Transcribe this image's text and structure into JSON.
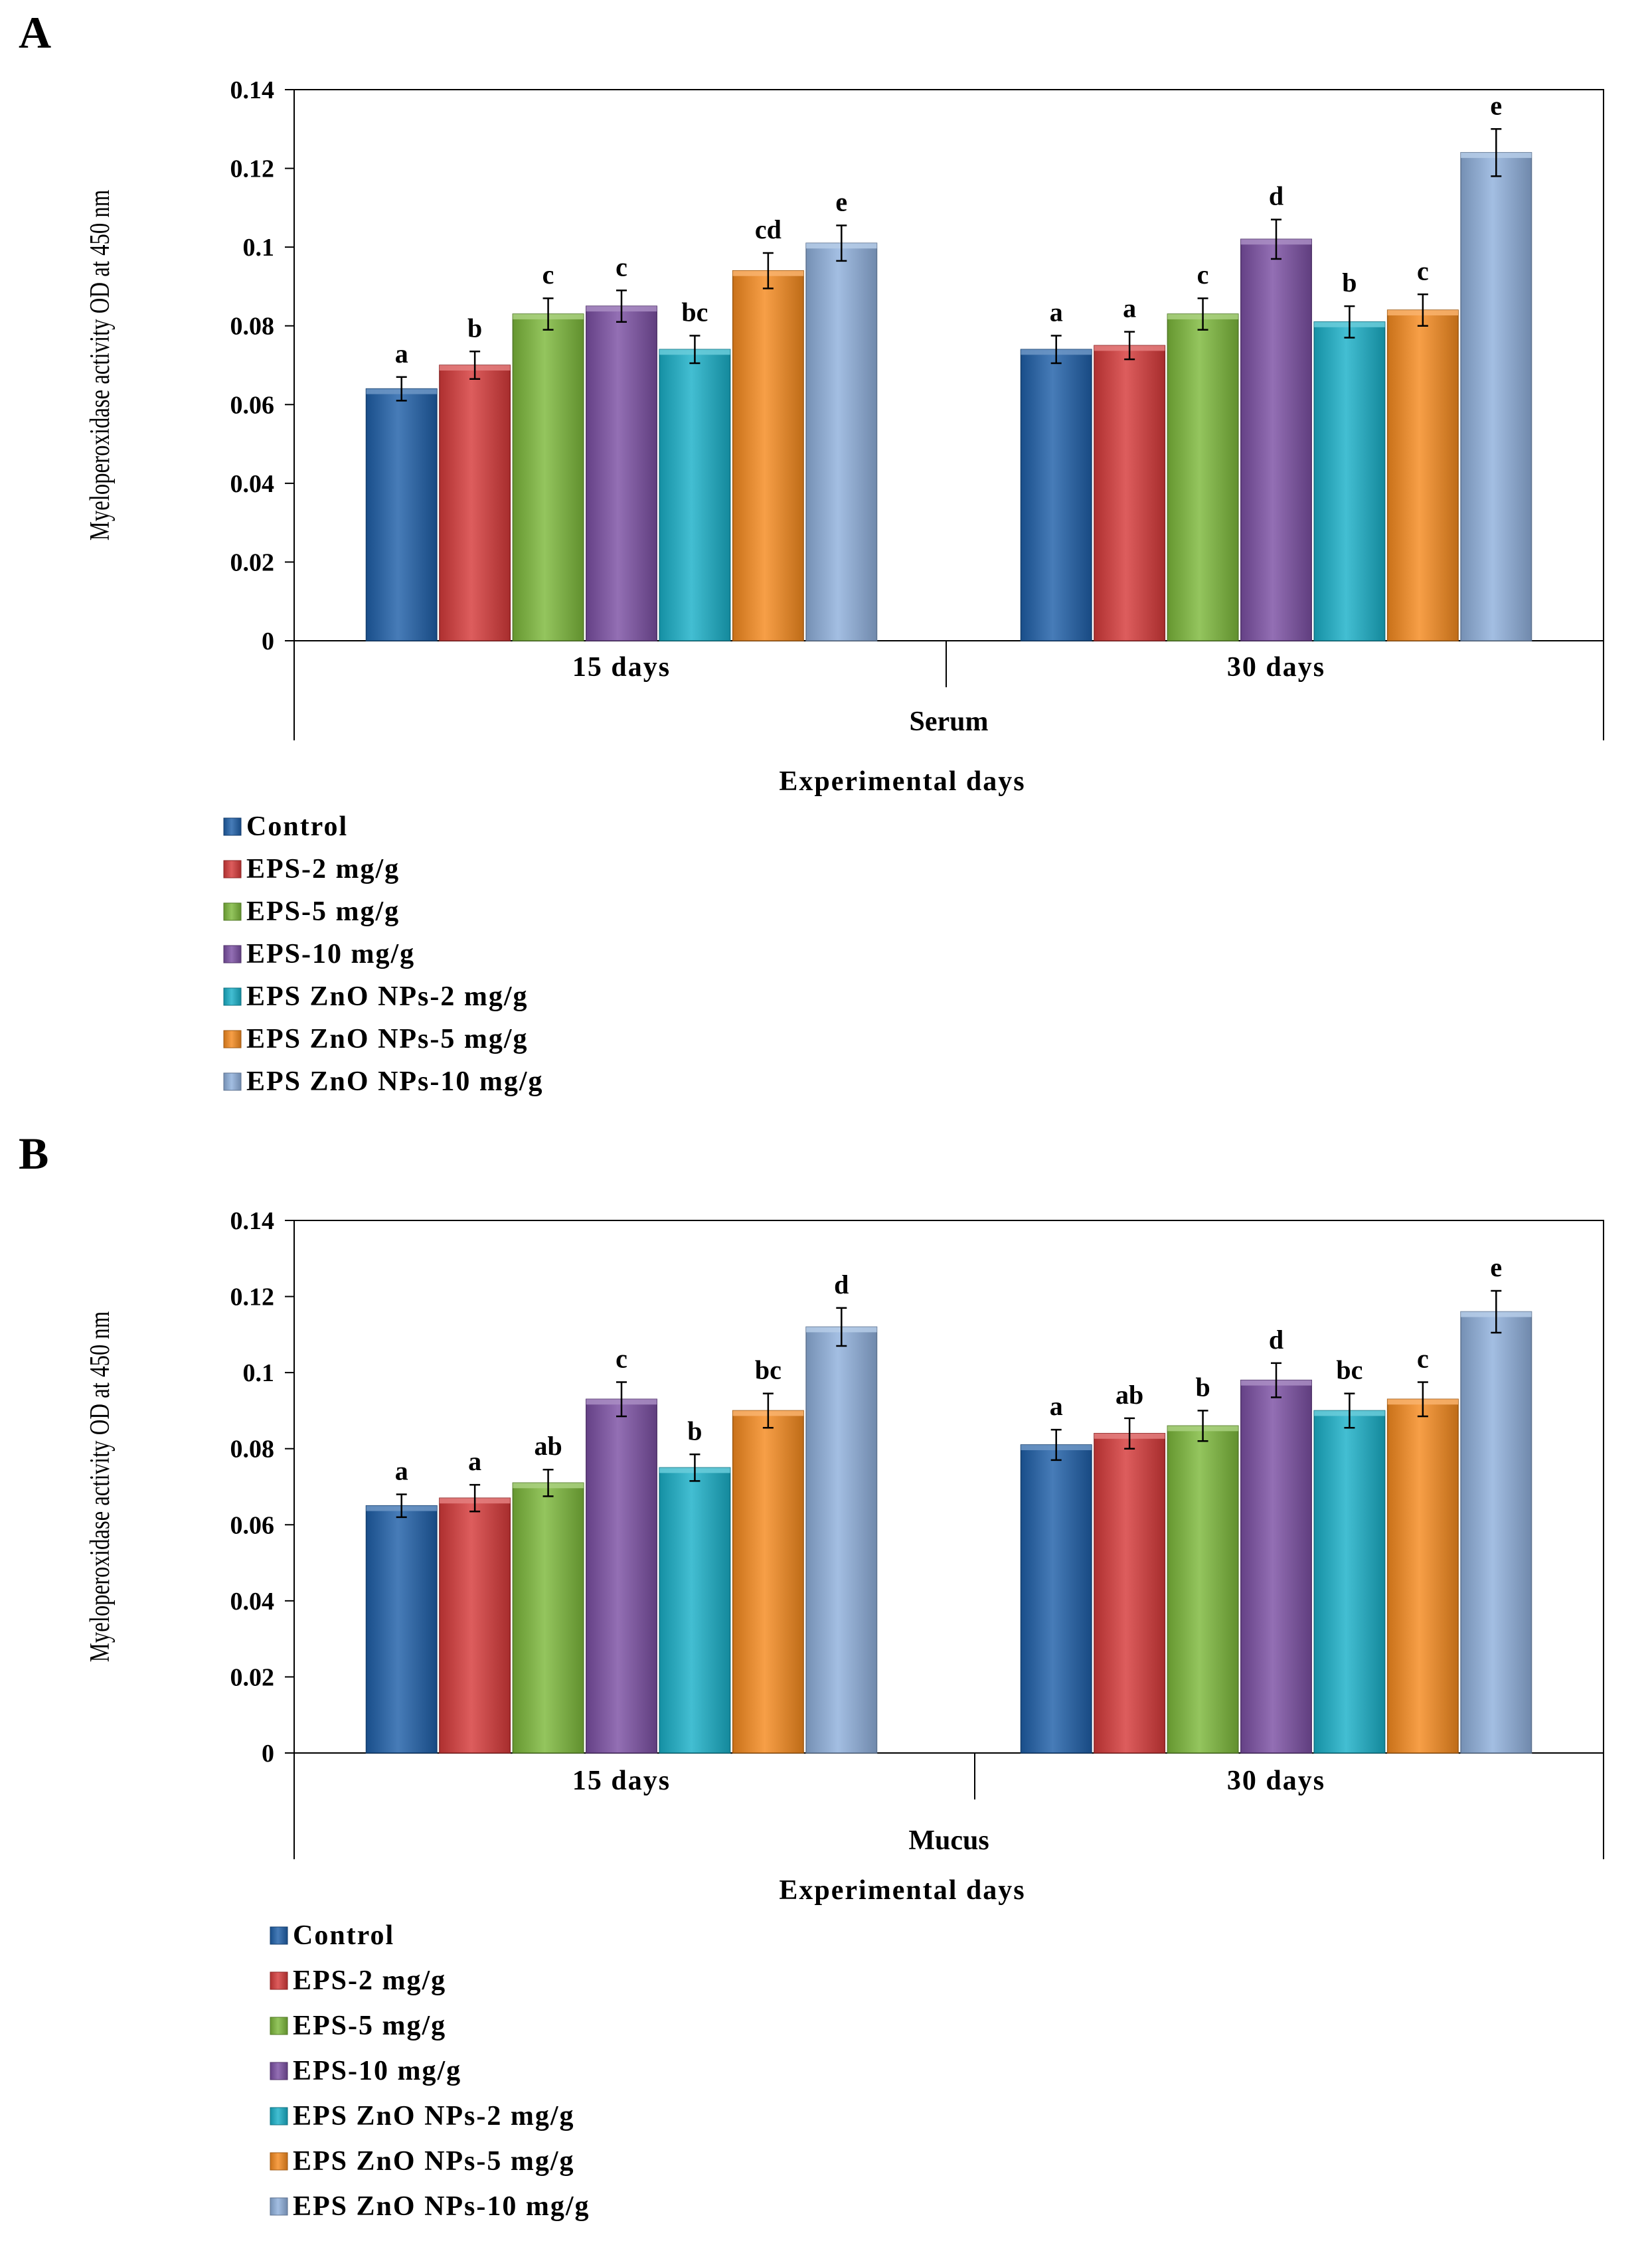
{
  "chart_data": [
    {
      "panel": "A",
      "type": "bar",
      "ylabel": "Myeloperoxidase activity OD at 450 nm",
      "xlabel": "Experimental  days",
      "group_label": "Serum",
      "categories": [
        "15 days",
        "30 days"
      ],
      "ylim": [
        0,
        0.14
      ],
      "yticks": [
        "0",
        "0.02",
        "0.04",
        "0.06",
        "0.08",
        "0.1",
        "0.12",
        "0.14"
      ],
      "series": [
        {
          "name": "Control",
          "color": "#1f5fa8",
          "values": [
            0.064,
            0.074
          ],
          "errors": [
            0.003,
            0.0035
          ],
          "letters": [
            "a",
            "a"
          ]
        },
        {
          "name": "EPS-2 mg/g",
          "color": "#d63a3a",
          "values": [
            0.07,
            0.075
          ],
          "errors": [
            0.0035,
            0.0035
          ],
          "letters": [
            "b",
            "a"
          ]
        },
        {
          "name": "EPS-5 mg/g",
          "color": "#7cb83b",
          "values": [
            0.083,
            0.083
          ],
          "errors": [
            0.004,
            0.004
          ],
          "letters": [
            "c",
            "c"
          ]
        },
        {
          "name": "EPS-10 mg/g",
          "color": "#7b4fa3",
          "values": [
            0.085,
            0.102
          ],
          "errors": [
            0.004,
            0.005
          ],
          "letters": [
            "c",
            "d"
          ]
        },
        {
          "name": "EPS ZnO NPs-2 mg/g",
          "color": "#1ab0c8",
          "values": [
            0.074,
            0.081
          ],
          "errors": [
            0.0035,
            0.004
          ],
          "letters": [
            "bc",
            "b"
          ]
        },
        {
          "name": "EPS ZnO NPs-5 mg/g",
          "color": "#f58a1f",
          "values": [
            0.094,
            0.084
          ],
          "errors": [
            0.0045,
            0.004
          ],
          "letters": [
            "cd",
            "c"
          ]
        },
        {
          "name": "EPS ZnO NPs-10 mg/g",
          "color": "#8fb0dc",
          "values": [
            0.101,
            0.124
          ],
          "errors": [
            0.0045,
            0.006
          ],
          "letters": [
            "e",
            "e"
          ]
        }
      ]
    },
    {
      "panel": "B",
      "type": "bar",
      "ylabel": "Myeloperoxidase activity OD at 450 nm",
      "xlabel": "Experimental  days",
      "group_label": "Mucus",
      "categories": [
        "15 days",
        "30 days"
      ],
      "ylim": [
        0,
        0.14
      ],
      "yticks": [
        "0",
        "0.02",
        "0.04",
        "0.06",
        "0.08",
        "0.1",
        "0.12",
        "0.14"
      ],
      "series": [
        {
          "name": "Control",
          "color": "#1f5fa8",
          "values": [
            0.065,
            0.081
          ],
          "errors": [
            0.003,
            0.004
          ],
          "letters": [
            "a",
            "a"
          ]
        },
        {
          "name": "EPS-2 mg/g",
          "color": "#d63a3a",
          "values": [
            0.067,
            0.084
          ],
          "errors": [
            0.0035,
            0.004
          ],
          "letters": [
            "a",
            "ab"
          ]
        },
        {
          "name": "EPS-5 mg/g",
          "color": "#7cb83b",
          "values": [
            0.071,
            0.086
          ],
          "errors": [
            0.0035,
            0.004
          ],
          "letters": [
            "ab",
            "b"
          ]
        },
        {
          "name": "EPS-10 mg/g",
          "color": "#7b4fa3",
          "values": [
            0.093,
            0.098
          ],
          "errors": [
            0.0045,
            0.0045
          ],
          "letters": [
            "c",
            "d"
          ]
        },
        {
          "name": "EPS ZnO NPs-2 mg/g",
          "color": "#1ab0c8",
          "values": [
            0.075,
            0.09
          ],
          "errors": [
            0.0035,
            0.0045
          ],
          "letters": [
            "b",
            "bc"
          ]
        },
        {
          "name": "EPS ZnO NPs-5 mg/g",
          "color": "#f58a1f",
          "values": [
            0.09,
            0.093
          ],
          "errors": [
            0.0045,
            0.0045
          ],
          "letters": [
            "bc",
            "c"
          ]
        },
        {
          "name": "EPS ZnO NPs-10 mg/g",
          "color": "#8fb0dc",
          "values": [
            0.112,
            0.116
          ],
          "errors": [
            0.005,
            0.0055
          ],
          "letters": [
            "d",
            "e"
          ]
        }
      ]
    }
  ]
}
